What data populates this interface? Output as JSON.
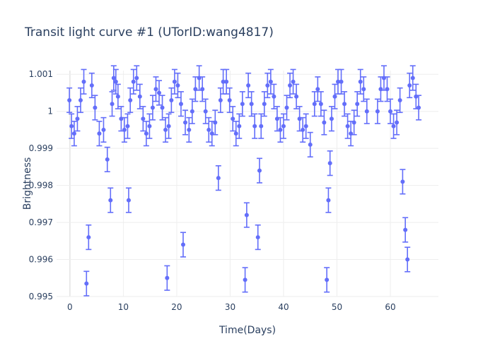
{
  "chart_data": {
    "type": "scatter",
    "title": "Transit light curve #1 (UTorID:wang4817)",
    "xlabel": "Time(Days)",
    "ylabel": "Brightness",
    "xlim": [
      -2.5,
      69
    ],
    "ylim": [
      0.995,
      1.0011
    ],
    "x_ticks": [
      0,
      10,
      20,
      30,
      40,
      50,
      60
    ],
    "x_tick_labels": [
      "0",
      "10",
      "20",
      "30",
      "40",
      "50",
      "60"
    ],
    "y_ticks": [
      0.995,
      0.996,
      0.997,
      0.998,
      0.999,
      1,
      1.001
    ],
    "y_tick_labels": [
      "0.995",
      "0.996",
      "0.997",
      "0.998",
      "0.999",
      "1",
      "1.001"
    ],
    "grid": true,
    "marker_color": "#636efa",
    "series": [
      {
        "x": [
          -0.1,
          0.3,
          0.8,
          1.4,
          2.0,
          2.6,
          3.1,
          3.5,
          4.1,
          4.7,
          5.5,
          6.3,
          7.0,
          7.6,
          7.9,
          8.2,
          8.6,
          9.0,
          9.6,
          10.2,
          10.8,
          11.0,
          11.3,
          11.9,
          12.5,
          13.1,
          13.7,
          14.3,
          14.9,
          15.5,
          16.1,
          16.7,
          17.3,
          17.9,
          18.2,
          18.5,
          19.0,
          19.6,
          20.2,
          20.8,
          21.2,
          21.6,
          22.3,
          22.9,
          23.5,
          24.2,
          24.8,
          25.4,
          26.0,
          26.6,
          27.2,
          27.8,
          28.2,
          28.7,
          29.3,
          29.9,
          30.5,
          31.1,
          31.7,
          32.3,
          32.8,
          33.1,
          33.4,
          34.0,
          34.6,
          35.2,
          35.5,
          35.8,
          36.4,
          37.0,
          37.6,
          38.2,
          38.8,
          39.4,
          40.0,
          40.6,
          41.2,
          41.8,
          42.4,
          43.0,
          43.6,
          44.2,
          45.0,
          45.8,
          46.4,
          47.0,
          47.6,
          48.1,
          48.4,
          48.7,
          49.0,
          49.6,
          50.2,
          50.8,
          51.4,
          52.0,
          52.6,
          53.2,
          53.8,
          54.4,
          55.0,
          55.6,
          57.6,
          58.2,
          58.8,
          59.4,
          60.0,
          60.6,
          61.2,
          61.8,
          62.3,
          62.8,
          63.2,
          63.6,
          64.2,
          64.8,
          65.3
        ],
        "y": [
          1.0003,
          0.9996,
          0.9994,
          0.9998,
          1.0003,
          1.0008,
          0.99535,
          0.9966,
          1.0007,
          1.0001,
          0.9994,
          0.9995,
          0.9987,
          0.9976,
          1.0002,
          1.0009,
          1.0008,
          1.0004,
          0.9998,
          0.9995,
          0.9996,
          0.9976,
          1.0003,
          1.0008,
          1.0009,
          1.0004,
          0.9998,
          0.9994,
          0.9996,
          1.0001,
          1.0006,
          1.0005,
          1.0001,
          0.9995,
          0.9955,
          0.9996,
          1.0003,
          1.0008,
          1.0007,
          1.0002,
          0.9964,
          0.9997,
          0.9995,
          1.0,
          1.0006,
          1.0009,
          1.0006,
          1.0,
          0.9995,
          0.9994,
          0.9997,
          0.9982,
          1.0003,
          1.0008,
          1.0008,
          1.0003,
          0.9998,
          0.9994,
          0.9996,
          1.0002,
          0.99545,
          0.9972,
          1.0007,
          1.0002,
          0.9996,
          0.9966,
          0.9984,
          0.9996,
          1.0002,
          1.0007,
          1.0008,
          1.0004,
          0.9998,
          0.9995,
          0.9996,
          1.0001,
          1.0007,
          1.0008,
          1.0004,
          0.9998,
          0.9995,
          0.9996,
          0.9991,
          1.0002,
          1.0006,
          1.0002,
          0.9997,
          0.99545,
          0.9976,
          0.9986,
          0.9998,
          1.0004,
          1.0008,
          1.0008,
          1.0002,
          0.9996,
          0.9994,
          0.9997,
          1.0002,
          1.0008,
          1.0006,
          1.0,
          1.0,
          1.0006,
          1.0009,
          1.0006,
          1.0,
          0.9996,
          0.9997,
          1.0003,
          0.9981,
          0.9968,
          0.996,
          1.0007,
          1.0009,
          1.0004,
          1.0001
        ],
        "error_y": 0.00033
      }
    ]
  }
}
